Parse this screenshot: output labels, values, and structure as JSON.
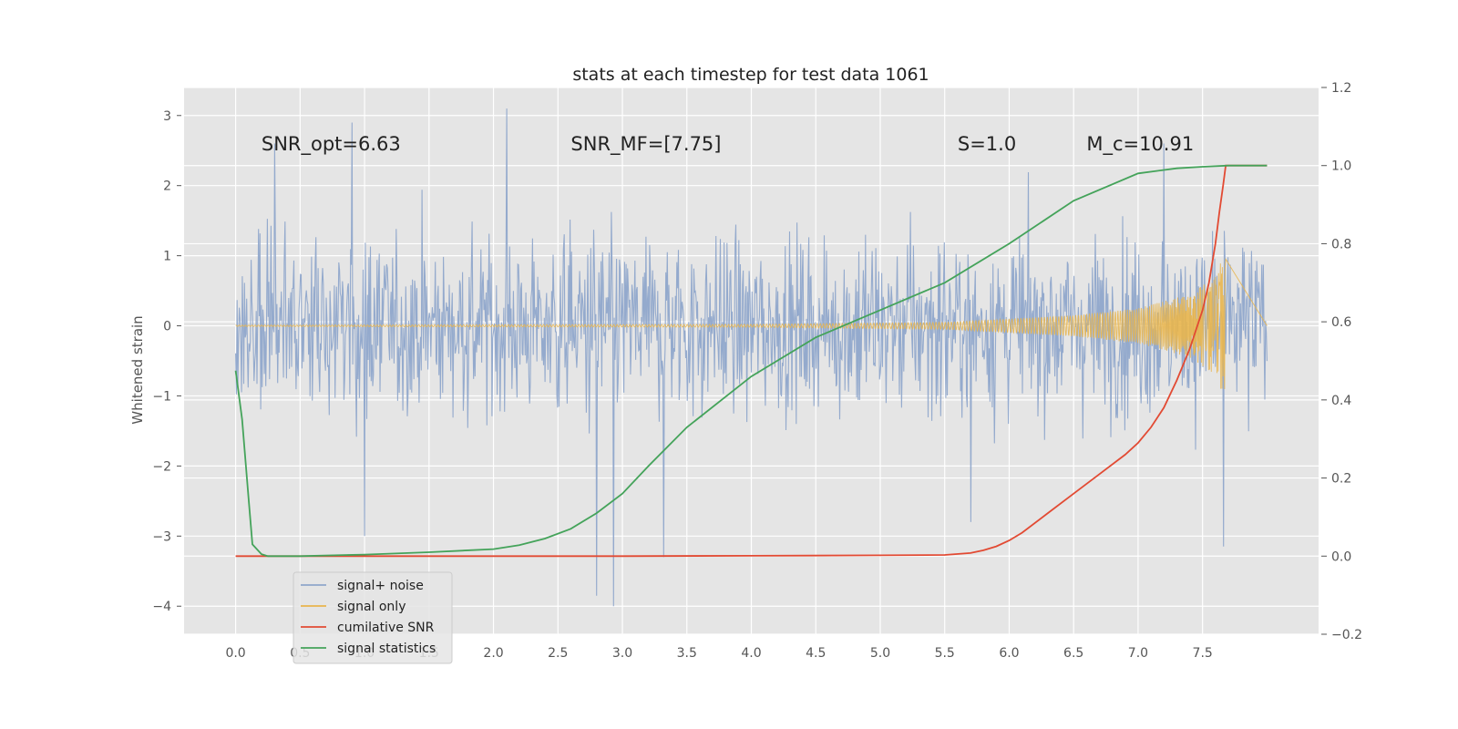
{
  "chart_data": {
    "type": "line",
    "title": "stats at each timestep for test data 1061",
    "ylabel": "Whitened strain",
    "xlim": [
      -0.4,
      8.4
    ],
    "ylim": [
      -4.4,
      3.4
    ],
    "y2lim": [
      -0.2,
      1.2
    ],
    "xticks": [
      "0.0",
      "0.5",
      "1.0",
      "1.5",
      "2.0",
      "2.5",
      "3.0",
      "3.5",
      "4.0",
      "4.5",
      "5.0",
      "5.5",
      "6.0",
      "6.5",
      "7.0",
      "7.5"
    ],
    "yticks": [
      "3",
      "2",
      "1",
      "0",
      "−1",
      "−2",
      "−3",
      "−4"
    ],
    "y2ticks": [
      "1.2",
      "1.0",
      "0.8",
      "0.6",
      "0.4",
      "0.2",
      "0.0",
      "−0.2"
    ],
    "grid": true,
    "legend_placement": "lower-left",
    "colors": {
      "background": "#e5e5e5",
      "grid": "#ffffff",
      "noise": "#8fa6cb",
      "signal": "#e8b54c",
      "snr": "#e24a33",
      "stats": "#44a35a"
    },
    "annotations": [
      {
        "text": "SNR_opt=6.63",
        "x": 0.2,
        "y": 2.5
      },
      {
        "text": "SNR_MF=[7.75]",
        "x": 2.6,
        "y": 2.5
      },
      {
        "text": "S=1.0",
        "x": 5.6,
        "y": 2.5
      },
      {
        "text": "M_c=10.91",
        "x": 6.6,
        "y": 2.5
      }
    ],
    "series": [
      {
        "name": "signal+ noise",
        "axis": "left",
        "style": "noise",
        "x_range": [
          0.0,
          8.0
        ],
        "amplitude": 1.6,
        "peaks": [
          [
            0.3,
            2.6
          ],
          [
            0.9,
            2.9
          ],
          [
            2.1,
            3.1
          ],
          [
            2.8,
            -3.85
          ],
          [
            2.93,
            -4.0
          ],
          [
            3.32,
            -3.3
          ],
          [
            1.0,
            -3.0
          ],
          [
            7.66,
            -3.15
          ],
          [
            5.7,
            -2.8
          ],
          [
            7.2,
            2.6
          ]
        ]
      },
      {
        "name": "signal only",
        "axis": "left",
        "style": "chirp",
        "x_range": [
          0.0,
          7.68
        ],
        "envelope": [
          [
            0.0,
            0.01
          ],
          [
            4.0,
            0.02
          ],
          [
            5.5,
            0.05
          ],
          [
            6.5,
            0.15
          ],
          [
            7.0,
            0.25
          ],
          [
            7.4,
            0.45
          ],
          [
            7.6,
            0.7
          ],
          [
            7.66,
            1.0
          ]
        ]
      },
      {
        "name": "cumilative SNR",
        "axis": "right",
        "x": [
          0.0,
          1.0,
          2.0,
          3.0,
          4.0,
          5.0,
          5.5,
          5.7,
          5.8,
          5.9,
          6.0,
          6.1,
          6.3,
          6.5,
          6.7,
          6.9,
          7.0,
          7.1,
          7.2,
          7.3,
          7.4,
          7.5,
          7.55,
          7.6,
          7.63,
          7.66,
          7.68,
          8.0
        ],
        "y": [
          0.0,
          0.0,
          0.0,
          0.0,
          0.001,
          0.002,
          0.003,
          0.008,
          0.015,
          0.025,
          0.04,
          0.06,
          0.11,
          0.16,
          0.21,
          0.26,
          0.29,
          0.33,
          0.38,
          0.45,
          0.53,
          0.63,
          0.7,
          0.8,
          0.88,
          0.95,
          1.0,
          1.0
        ]
      },
      {
        "name": "signal statistics",
        "axis": "right",
        "x": [
          0.0,
          0.05,
          0.1,
          0.13,
          0.2,
          0.25,
          0.5,
          1.0,
          1.5,
          2.0,
          2.2,
          2.4,
          2.6,
          2.8,
          3.0,
          3.2,
          3.5,
          4.0,
          4.5,
          5.0,
          5.5,
          6.0,
          6.5,
          7.0,
          7.3,
          7.5,
          7.7,
          8.0
        ],
        "y": [
          0.475,
          0.35,
          0.15,
          0.03,
          0.005,
          0.0,
          0.0,
          0.004,
          0.01,
          0.018,
          0.028,
          0.045,
          0.07,
          0.11,
          0.16,
          0.23,
          0.33,
          0.46,
          0.56,
          0.63,
          0.7,
          0.8,
          0.91,
          0.98,
          0.993,
          0.997,
          1.0,
          1.0
        ]
      }
    ]
  }
}
